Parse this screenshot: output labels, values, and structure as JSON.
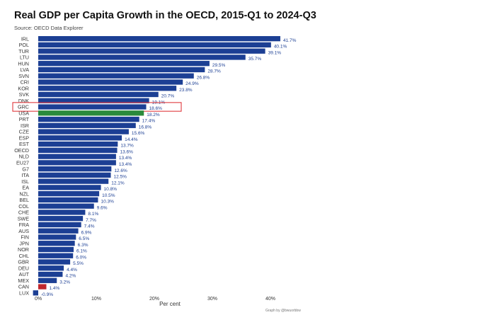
{
  "chart_data": {
    "type": "bar",
    "orientation": "horizontal",
    "title": "Real GDP per Capita Growth in the OECD, 2015-Q1 to 2024-Q3",
    "source": "Source: OECD Data Explorer",
    "xlabel": "Per cent",
    "credit": "Graph by @bwuorbbw",
    "xlim": [
      -1,
      45
    ],
    "xticks": [
      0,
      10,
      20,
      30,
      40
    ],
    "xtick_labels": [
      "0%",
      "10%",
      "20%",
      "30%",
      "40%"
    ],
    "grid": false,
    "categories": [
      "IRL",
      "POL",
      "TUR",
      "LTU",
      "HUN",
      "LVA",
      "SVN",
      "CRI",
      "KOR",
      "SVK",
      "DNK",
      "GRC",
      "USA",
      "PRT",
      "ISR",
      "CZE",
      "ESP",
      "EST",
      "OECD",
      "NLD",
      "EU27",
      "G7",
      "ITA",
      "ISL",
      "EA",
      "NZL",
      "BEL",
      "COL",
      "CHE",
      "SWE",
      "FRA",
      "AUS",
      "FIN",
      "JPN",
      "NOR",
      "CHL",
      "GBR",
      "DEU",
      "AUT",
      "MEX",
      "CAN",
      "LUX"
    ],
    "values": [
      41.7,
      40.1,
      39.1,
      35.7,
      29.5,
      28.7,
      26.8,
      24.9,
      23.8,
      20.7,
      19.1,
      18.6,
      18.2,
      17.4,
      16.8,
      15.6,
      14.4,
      13.7,
      13.6,
      13.4,
      13.4,
      12.6,
      12.5,
      12.1,
      10.8,
      10.5,
      10.3,
      9.6,
      8.1,
      7.7,
      7.4,
      6.9,
      6.5,
      6.3,
      6.1,
      6.0,
      5.5,
      4.4,
      4.2,
      3.2,
      1.4,
      -0.9
    ],
    "value_labels": [
      "41.7%",
      "40.1%",
      "39.1%",
      "35.7%",
      "29.5%",
      "28.7%",
      "26.8%",
      "24.9%",
      "23.8%",
      "20.7%",
      "19.1%",
      "18.6%",
      "18.2%",
      "17.4%",
      "16.8%",
      "15.6%",
      "14.4%",
      "13.7%",
      "13.6%",
      "13.4%",
      "13.4%",
      "12.6%",
      "12.5%",
      "12.1%",
      "10.8%",
      "10.5%",
      "10.3%",
      "9.6%",
      "8.1%",
      "7.7%",
      "7.4%",
      "6.9%",
      "6.5%",
      "6.3%",
      "6.1%",
      "6.0%",
      "5.5%",
      "4.4%",
      "4.2%",
      "3.2%",
      "1.4%",
      "-0.9%"
    ],
    "colors": {
      "default": "#1c3f94",
      "USA": "#2a8a3c",
      "CAN": "#c0272d",
      "highlight_box": "#e03a3e",
      "label": "#1c3f94"
    },
    "highlight": "GRC"
  }
}
